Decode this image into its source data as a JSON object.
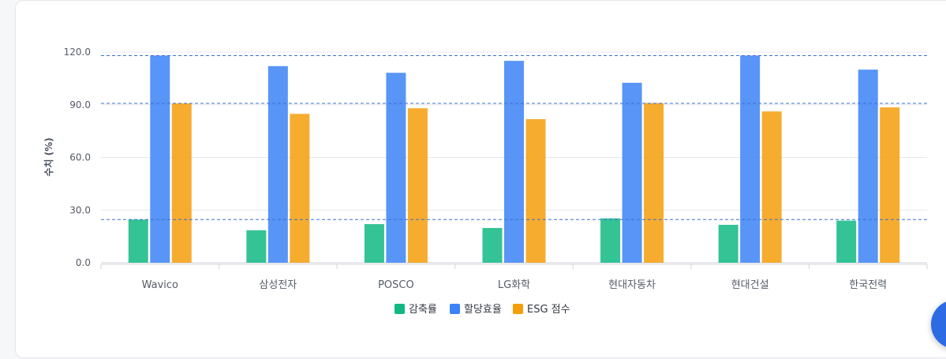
{
  "chart_data": {
    "type": "bar",
    "ylabel": "수치 (%)",
    "xlabel": "",
    "ylim": [
      0,
      120
    ],
    "yticks": [
      0,
      30,
      60,
      90,
      120
    ],
    "ytick_labels": [
      "0.0",
      "30.0",
      "60.0",
      "90.0",
      "120.0"
    ],
    "categories": [
      "Wavico",
      "삼성전자",
      "POSCO",
      "LG화학",
      "현대자동차",
      "현대건설",
      "한국전력"
    ],
    "highlight_category": "Wavico",
    "series": [
      {
        "name": "감축률",
        "color": "#10b981",
        "values": [
          24.6,
          18.5,
          22.0,
          19.8,
          25.3,
          21.6,
          24.0
        ]
      },
      {
        "name": "할당효율",
        "color": "#3b82f6",
        "values": [
          118.0,
          112.0,
          108.2,
          115.0,
          102.5,
          118.0,
          110.0
        ]
      },
      {
        "name": "ESG 점수",
        "color": "#f59e0b",
        "values": [
          90.8,
          84.8,
          88.0,
          81.8,
          91.0,
          86.2,
          88.5
        ]
      }
    ],
    "reference_lines": [
      118.0,
      90.8,
      24.6
    ],
    "grid": true,
    "legend_position": "bottom-center",
    "highlight_color": "#3b6fd6"
  }
}
